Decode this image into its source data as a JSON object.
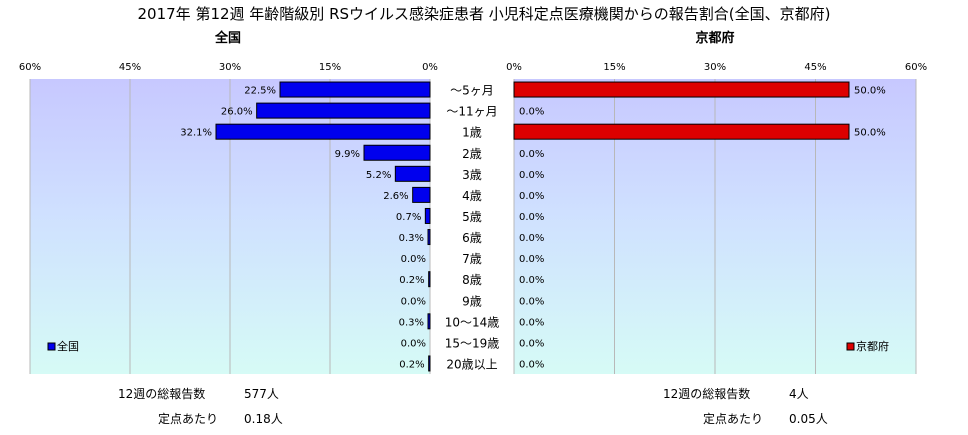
{
  "title": "2017年 第12週 年齢階級別 RSウイルス感染症患者 小児科定点医療機関からの報告割合(全国、京都府)",
  "chart_data": [
    {
      "type": "bar",
      "orientation": "horizontal",
      "direction": "right-to-left",
      "subtitle": "全国",
      "categories": [
        "～5ヶ月",
        "～11ヶ月",
        "1歳",
        "2歳",
        "3歳",
        "4歳",
        "5歳",
        "6歳",
        "7歳",
        "8歳",
        "9歳",
        "10～14歳",
        "15～19歳",
        "20歳以上"
      ],
      "series": [
        {
          "name": "全国",
          "values": [
            22.5,
            26.0,
            32.1,
            9.9,
            5.2,
            2.6,
            0.7,
            0.3,
            0.0,
            0.2,
            0.0,
            0.3,
            0.0,
            0.2
          ],
          "labels": [
            "22.5%",
            "26.0%",
            "32.1%",
            "9.9%",
            "5.2%",
            "2.6%",
            "0.7%",
            "0.3%",
            "0.0%",
            "0.2%",
            "0.0%",
            "0.3%",
            "0.0%",
            "0.2%"
          ]
        }
      ],
      "xlim": [
        0,
        60
      ],
      "ticks": [
        "60%",
        "45%",
        "30%",
        "15%",
        "0%"
      ],
      "grid": true,
      "legend_position": "bottom-left",
      "color": "#0000ee"
    },
    {
      "type": "bar",
      "orientation": "horizontal",
      "direction": "left-to-right",
      "subtitle": "京都府",
      "categories": [
        "～5ヶ月",
        "～11ヶ月",
        "1歳",
        "2歳",
        "3歳",
        "4歳",
        "5歳",
        "6歳",
        "7歳",
        "8歳",
        "9歳",
        "10～14歳",
        "15～19歳",
        "20歳以上"
      ],
      "series": [
        {
          "name": "京都府",
          "values": [
            50.0,
            0.0,
            50.0,
            0.0,
            0.0,
            0.0,
            0.0,
            0.0,
            0.0,
            0.0,
            0.0,
            0.0,
            0.0,
            0.0
          ],
          "labels": [
            "50.0%",
            "0.0%",
            "50.0%",
            "0.0%",
            "0.0%",
            "0.0%",
            "0.0%",
            "0.0%",
            "0.0%",
            "0.0%",
            "0.0%",
            "0.0%",
            "0.0%",
            "0.0%"
          ]
        }
      ],
      "xlim": [
        0,
        60
      ],
      "ticks": [
        "0%",
        "15%",
        "30%",
        "45%",
        "60%"
      ],
      "grid": true,
      "legend_position": "bottom-right",
      "color": "#dd0000"
    }
  ],
  "footer": {
    "national_total_label": "12週の総報告数",
    "national_total_value": "577人",
    "national_per_label": "定点あたり",
    "national_per_value": "0.18人",
    "kyoto_total_label": "12週の総報告数",
    "kyoto_total_value": "4人",
    "kyoto_per_label": "定点あたり",
    "kyoto_per_value": "0.05人"
  }
}
